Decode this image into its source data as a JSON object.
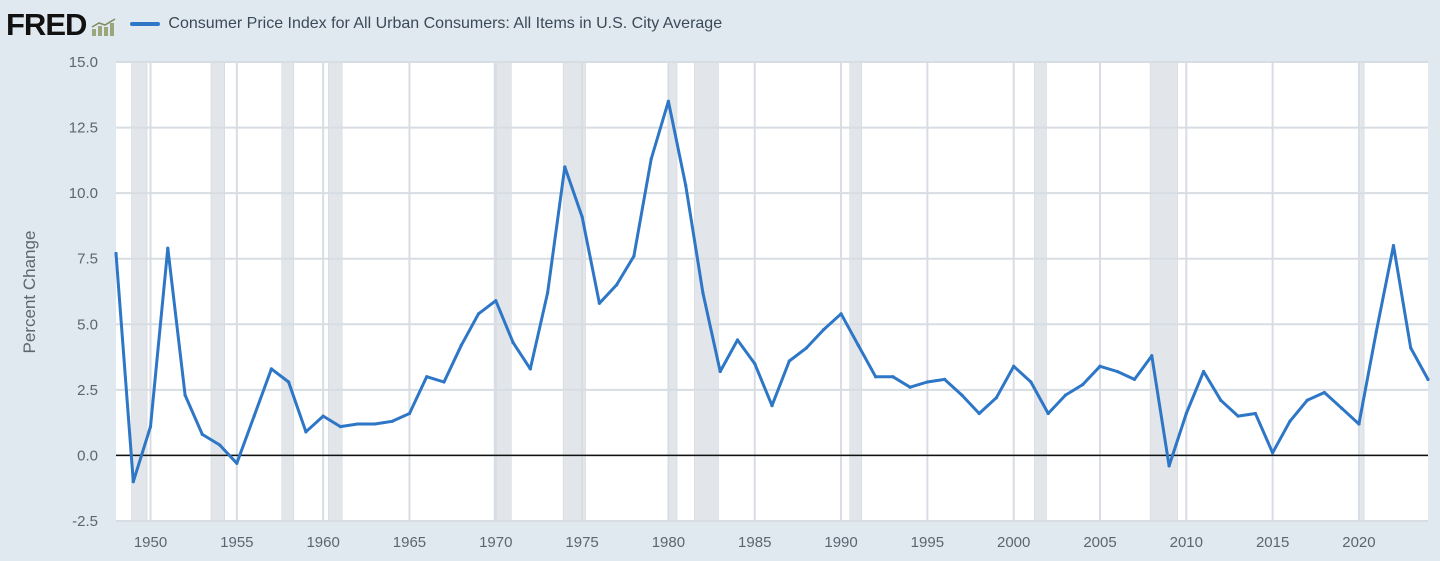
{
  "header": {
    "logo_text": "FRED",
    "logo_icon": "chart-trend-icon",
    "legend_label": "Consumer Price Index for All Urban Consumers: All Items in U.S. City Average",
    "legend_color": "#2e76c6"
  },
  "colors": {
    "background": "#e1e9f0",
    "plot_background": "#ffffff",
    "grid": "#d7dde3",
    "recession": "#e2e5e9",
    "line": "#2e76c6",
    "zero_line": "#111111"
  },
  "chart_data": {
    "type": "line",
    "title": "",
    "xlabel": "",
    "ylabel": "Percent Change",
    "xlim": [
      1948,
      2024
    ],
    "ylim": [
      -2.5,
      15.0
    ],
    "grid": true,
    "legend_placement": "top-left",
    "x_ticks": [
      1950,
      1955,
      1960,
      1965,
      1970,
      1975,
      1980,
      1985,
      1990,
      1995,
      2000,
      2005,
      2010,
      2015,
      2020
    ],
    "y_ticks": [
      "-2.5",
      "0.0",
      "2.5",
      "5.0",
      "7.5",
      "10.0",
      "12.5",
      "15.0"
    ],
    "recessions": [
      [
        1948.9,
        1949.8
      ],
      [
        1953.5,
        1954.3
      ],
      [
        1957.6,
        1958.3
      ],
      [
        1960.3,
        1961.1
      ],
      [
        1969.9,
        1970.9
      ],
      [
        1973.9,
        1975.2
      ],
      [
        1980.0,
        1980.5
      ],
      [
        1981.5,
        1982.9
      ],
      [
        1990.5,
        1991.2
      ],
      [
        2001.2,
        2001.9
      ],
      [
        2007.9,
        2009.5
      ],
      [
        2020.1,
        2020.3
      ]
    ],
    "series": [
      {
        "x": [
          1948,
          1949,
          1950,
          1951,
          1952,
          1953,
          1954,
          1955,
          1956,
          1957,
          1958,
          1959,
          1960,
          1961,
          1962,
          1963,
          1964,
          1965,
          1966,
          1967,
          1968,
          1969,
          1970,
          1971,
          1972,
          1973,
          1974,
          1975,
          1976,
          1977,
          1978,
          1979,
          1980,
          1981,
          1982,
          1983,
          1984,
          1985,
          1986,
          1987,
          1988,
          1989,
          1990,
          1991,
          1992,
          1993,
          1994,
          1995,
          1996,
          1997,
          1998,
          1999,
          2000,
          2001,
          2002,
          2003,
          2004,
          2005,
          2006,
          2007,
          2008,
          2009,
          2010,
          2011,
          2012,
          2013,
          2014,
          2015,
          2016,
          2017,
          2018,
          2019,
          2020,
          2021,
          2022,
          2023,
          2024
        ],
        "values": [
          7.7,
          -1.0,
          1.1,
          7.9,
          2.3,
          0.8,
          0.4,
          -0.3,
          1.5,
          3.3,
          2.8,
          0.9,
          1.5,
          1.1,
          1.2,
          1.2,
          1.3,
          1.6,
          3.0,
          2.8,
          4.2,
          5.4,
          5.9,
          4.3,
          3.3,
          6.2,
          11.0,
          9.1,
          5.8,
          6.5,
          7.6,
          11.3,
          13.5,
          10.3,
          6.2,
          3.2,
          4.4,
          3.5,
          1.9,
          3.6,
          4.1,
          4.8,
          5.4,
          4.2,
          3.0,
          3.0,
          2.6,
          2.8,
          2.9,
          2.3,
          1.6,
          2.2,
          3.4,
          2.8,
          1.6,
          2.3,
          2.7,
          3.4,
          3.2,
          2.9,
          3.8,
          -0.4,
          1.6,
          3.2,
          2.1,
          1.5,
          1.6,
          0.1,
          1.3,
          2.1,
          2.4,
          1.8,
          1.2,
          4.7,
          8.0,
          4.1,
          2.9
        ]
      }
    ]
  }
}
